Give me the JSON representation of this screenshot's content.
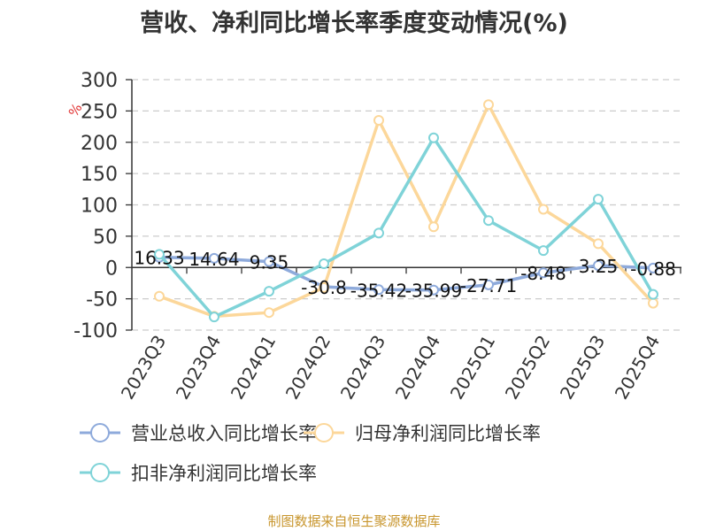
{
  "title": "营收、净利同比增长率季度变动情况(%)",
  "footer": "制图数据来自恒生聚源数据库",
  "y_axis_unit": "%",
  "colors": {
    "revenue": "#8eaadb",
    "parent_net_profit": "#fcd79a",
    "deducted_net_profit": "#7fd3d8",
    "unit_label": "#e03030",
    "footer": "#c8962e",
    "grid": "#cccccc",
    "axis": "#333333"
  },
  "legend": [
    {
      "label": "营业总收入同比增长率",
      "color": "#8eaadb"
    },
    {
      "label": "归母净利润同比增长率",
      "color": "#fcd79a"
    },
    {
      "label": "扣非净利润同比增长率",
      "color": "#7fd3d8"
    }
  ],
  "chart_data": {
    "type": "line",
    "title": "营收、净利同比增长率季度变动情况(%)",
    "xlabel": "",
    "ylabel": "%",
    "ylim": [
      -100,
      300
    ],
    "yticks": [
      300,
      250,
      200,
      150,
      100,
      50,
      0,
      -50,
      -100
    ],
    "grid": true,
    "legend_position": "bottom",
    "categories": [
      "2023Q3",
      "2023Q4",
      "2024Q1",
      "2024Q2",
      "2024Q3",
      "2024Q4",
      "2025Q1",
      "2025Q2",
      "2025Q3",
      "2025Q4"
    ],
    "series": [
      {
        "name": "营业总收入同比增长率",
        "values": [
          16.33,
          14.64,
          9.35,
          -30.8,
          -35.42,
          -35.99,
          -27.71,
          -8.48,
          3.25,
          -0.88
        ],
        "labels": [
          "16.33",
          "14.64",
          "9.35",
          "-30.8",
          "-35.42",
          "-35.99",
          "-27.71",
          "-8.48",
          "3.25",
          "-0.88"
        ]
      },
      {
        "name": "归母净利润同比增长率",
        "values": [
          -46,
          -78,
          -72,
          -32,
          235,
          65,
          260,
          93,
          38,
          -57
        ]
      },
      {
        "name": "扣非净利润同比增长率",
        "values": [
          21,
          -79,
          -38,
          6,
          55,
          207,
          75,
          27,
          109,
          -43
        ]
      }
    ]
  }
}
